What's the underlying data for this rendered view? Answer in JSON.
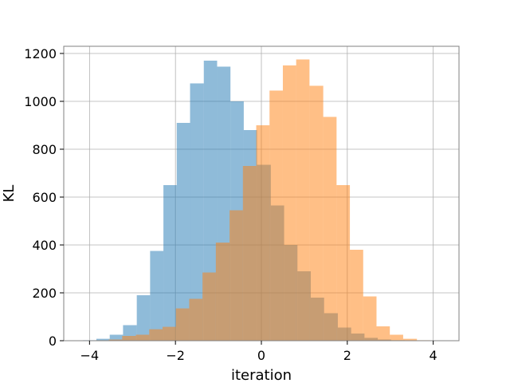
{
  "chart_data": {
    "type": "bar",
    "subtype": "overlaid-histogram",
    "title": "",
    "xlabel": "iteration",
    "ylabel": "KL",
    "xlim": [
      -4.6,
      4.6
    ],
    "ylim": [
      0,
      1230
    ],
    "xticks": [
      -4,
      -2,
      0,
      2,
      4
    ],
    "xtick_labels": [
      "−4",
      "−2",
      "0",
      "2",
      "4"
    ],
    "yticks": [
      0,
      200,
      400,
      600,
      800,
      1000,
      1200
    ],
    "ytick_labels": [
      "0",
      "200",
      "400",
      "600",
      "800",
      "1000",
      "1200"
    ],
    "grid": true,
    "legend": "none",
    "series": [
      {
        "color": "#1f77b4",
        "alpha": 0.5,
        "bins": [
          [
            -4.15,
            -3.84,
            2
          ],
          [
            -3.84,
            -3.53,
            8
          ],
          [
            -3.53,
            -3.22,
            25
          ],
          [
            -3.22,
            -2.9,
            65
          ],
          [
            -2.9,
            -2.59,
            190
          ],
          [
            -2.59,
            -2.28,
            375
          ],
          [
            -2.28,
            -1.97,
            650
          ],
          [
            -1.97,
            -1.66,
            910
          ],
          [
            -1.66,
            -1.34,
            1075
          ],
          [
            -1.34,
            -1.03,
            1170
          ],
          [
            -1.03,
            -0.72,
            1145
          ],
          [
            -0.72,
            -0.41,
            1000
          ],
          [
            -0.41,
            -0.1,
            880
          ],
          [
            -0.1,
            0.22,
            735
          ],
          [
            0.22,
            0.53,
            565
          ],
          [
            0.53,
            0.84,
            400
          ],
          [
            0.84,
            1.15,
            290
          ],
          [
            1.15,
            1.46,
            180
          ],
          [
            1.46,
            1.78,
            115
          ],
          [
            1.78,
            2.09,
            55
          ],
          [
            2.09,
            2.4,
            30
          ],
          [
            2.4,
            2.71,
            12
          ],
          [
            2.71,
            3.02,
            5
          ],
          [
            3.02,
            3.34,
            2
          ]
        ]
      },
      {
        "color": "#ff7f0e",
        "alpha": 0.5,
        "bins": [
          [
            -3.86,
            -3.55,
            2
          ],
          [
            -3.55,
            -3.24,
            5
          ],
          [
            -3.24,
            -2.92,
            20
          ],
          [
            -2.92,
            -2.61,
            25
          ],
          [
            -2.61,
            -2.3,
            48
          ],
          [
            -2.3,
            -1.99,
            58
          ],
          [
            -1.99,
            -1.68,
            135
          ],
          [
            -1.68,
            -1.37,
            175
          ],
          [
            -1.37,
            -1.06,
            285
          ],
          [
            -1.06,
            -0.74,
            410
          ],
          [
            -0.74,
            -0.43,
            545
          ],
          [
            -0.43,
            -0.12,
            730
          ],
          [
            -0.12,
            0.19,
            900
          ],
          [
            0.19,
            0.5,
            1045
          ],
          [
            0.5,
            0.81,
            1150
          ],
          [
            0.81,
            1.12,
            1175
          ],
          [
            1.12,
            1.44,
            1065
          ],
          [
            1.44,
            1.75,
            935
          ],
          [
            1.75,
            2.06,
            650
          ],
          [
            2.06,
            2.37,
            380
          ],
          [
            2.37,
            2.68,
            185
          ],
          [
            2.68,
            2.99,
            60
          ],
          [
            2.99,
            3.3,
            25
          ],
          [
            3.3,
            3.62,
            8
          ],
          [
            3.62,
            3.93,
            2
          ]
        ]
      }
    ]
  }
}
